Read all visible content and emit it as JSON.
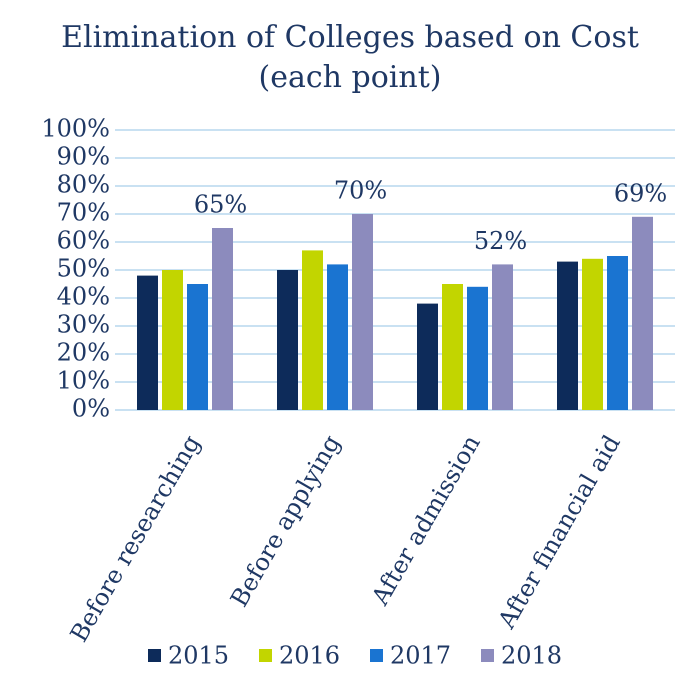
{
  "chart_data": {
    "type": "bar",
    "title": "Elimination of Colleges based on Cost (each point)",
    "categories": [
      "Before researching",
      "Before applying",
      "After admission",
      "After financial aid"
    ],
    "series": [
      {
        "name": "2015",
        "color": "#0d2b5a",
        "values": [
          48,
          50,
          38,
          53
        ]
      },
      {
        "name": "2016",
        "color": "#c2d500",
        "values": [
          50,
          57,
          45,
          54
        ]
      },
      {
        "name": "2017",
        "color": "#1a74d1",
        "values": [
          45,
          52,
          44,
          55
        ]
      },
      {
        "name": "2018",
        "color": "#8c8bbd",
        "values": [
          65,
          70,
          52,
          69
        ],
        "value_labels": [
          "65%",
          "70%",
          "52%",
          "69%"
        ]
      }
    ],
    "ylim": [
      0,
      100
    ],
    "yticks": [
      {
        "value": 0,
        "label": "0%"
      },
      {
        "value": 10,
        "label": "10%"
      },
      {
        "value": 20,
        "label": "20%"
      },
      {
        "value": 30,
        "label": "30%"
      },
      {
        "value": 40,
        "label": "40%"
      },
      {
        "value": 50,
        "label": "50%"
      },
      {
        "value": 60,
        "label": "60%"
      },
      {
        "value": 70,
        "label": "70%"
      },
      {
        "value": 80,
        "label": "80%"
      },
      {
        "value": 90,
        "label": "90%"
      },
      {
        "value": 100,
        "label": "100%"
      }
    ],
    "grid": true,
    "legend": "bottom"
  }
}
